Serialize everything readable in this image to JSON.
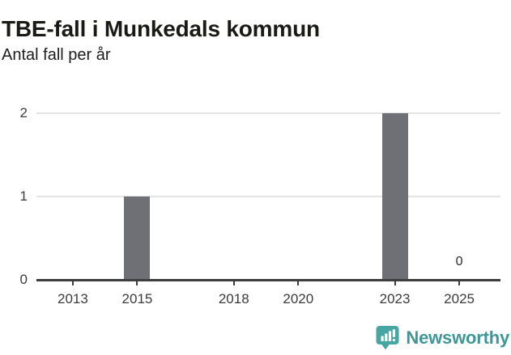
{
  "page": {
    "title": "TBE-fall i Munkedals kommun",
    "subtitle": "Antal fall per år"
  },
  "chart_data": {
    "type": "bar",
    "title": "TBE-fall i Munkedals kommun",
    "subtitle": "Antal fall per år",
    "xlabel": "",
    "ylabel": "",
    "xlim": [
      2011.87,
      2026.28
    ],
    "ylim": [
      0,
      2
    ],
    "xticks": [
      2013,
      2015,
      2018,
      2020,
      2023,
      2025
    ],
    "yticks": [
      0,
      1,
      2
    ],
    "grid": "horizontal",
    "legend": "none",
    "bar_color": "#6e7076",
    "grid_color": "#e4e4e4",
    "axis_color": "#3d3d3d",
    "tick_label_color": "#3b3b3b",
    "points": [
      {
        "year": 2015,
        "value": 1
      },
      {
        "year": 2023,
        "value": 2
      },
      {
        "year": 2025,
        "value": 0,
        "label": "0"
      }
    ]
  },
  "footer": {
    "brand": "Newsworthy",
    "brand_color": "#3e9697",
    "icon": "newsworthy-chart-bubble-icon",
    "icon_color": "#48a6a2"
  }
}
